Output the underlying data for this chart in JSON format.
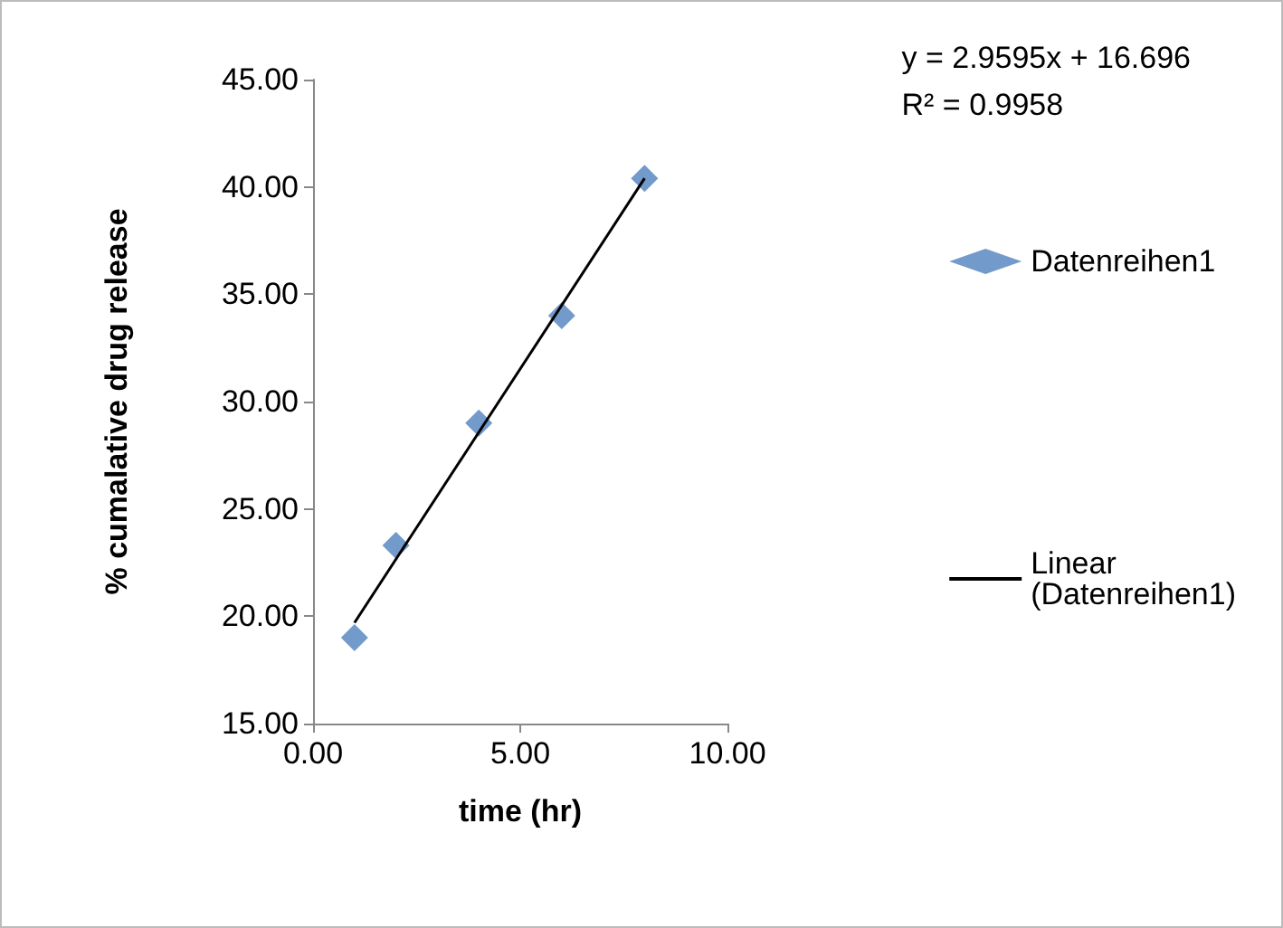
{
  "chart_data": {
    "type": "scatter",
    "xlabel": "time (hr)",
    "ylabel": "% cumalative drug release",
    "annotations": [
      "y = 2.9595x + 16.696",
      "R² = 0.9958"
    ],
    "xlim": [
      0,
      10
    ],
    "xticks": [
      {
        "value": 0,
        "label": "0.00"
      },
      {
        "value": 5,
        "label": "5.00"
      },
      {
        "value": 10,
        "label": "10.00"
      }
    ],
    "ylim": [
      15,
      45
    ],
    "yticks": [
      {
        "value": 15,
        "label": "15.00"
      },
      {
        "value": 20,
        "label": "20.00"
      },
      {
        "value": 25,
        "label": "25.00"
      },
      {
        "value": 30,
        "label": "30.00"
      },
      {
        "value": 35,
        "label": "35.00"
      },
      {
        "value": 40,
        "label": "40.00"
      },
      {
        "value": 45,
        "label": "45.00"
      }
    ],
    "grid": false,
    "legend": "right",
    "marker": "diamond",
    "series": [
      {
        "name": "Datenreihen1",
        "color": "#4f81bd",
        "x": [
          1,
          2,
          4,
          6,
          8
        ],
        "values": [
          19.0,
          23.3,
          29.0,
          34.0,
          40.4
        ]
      },
      {
        "name": "Linear (Datenreihen1)",
        "type": "line",
        "color": "#000000",
        "marker": "none",
        "line_style": "solid",
        "x": [
          1,
          8
        ],
        "values": [
          19.7,
          40.4
        ]
      }
    ]
  }
}
